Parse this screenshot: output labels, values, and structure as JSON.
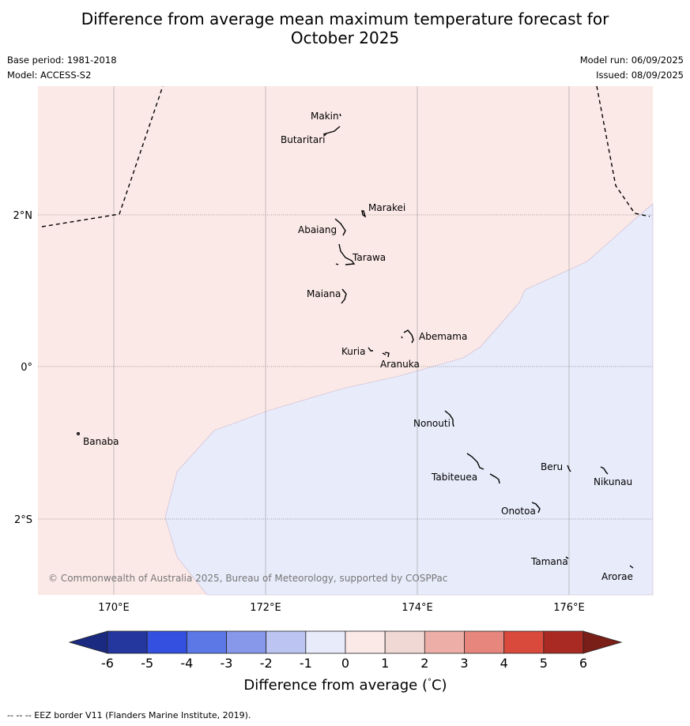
{
  "title_line1": "Difference from average mean maximum temperature forecast for",
  "title_line2": "October 2025",
  "base_period": "Base period: 1981-2018",
  "model": "Model: ACCESS-S2",
  "model_run": "Model run: 06/09/2025",
  "issued": "Issued: 08/09/2025",
  "copyright": "© Commonwealth of Australia 2025, Bureau of Meteorology, supported by COSPPac",
  "lat_labels": [
    "2°N",
    "0°",
    "2°S"
  ],
  "lon_labels": [
    "170°E",
    "172°E",
    "174°E",
    "176°E"
  ],
  "colorbar": {
    "label": "Difference from average (°C)",
    "label_prefix": "Difference from average (",
    "label_unit": "C)",
    "ticks": [
      "-6",
      "-5",
      "-4",
      "-3",
      "-2",
      "-1",
      "0",
      "1",
      "2",
      "3",
      "4",
      "5",
      "6"
    ],
    "colors": [
      "#24379f",
      "#3350e0",
      "#5c78e6",
      "#8798eb",
      "#bcc5f2",
      "#e8ebfa",
      "#fbe9e7",
      "#f0d8d4",
      "#ecaea7",
      "#e6867d",
      "#d9493c",
      "#a82a22"
    ],
    "under_color": "#1a2a80",
    "over_color": "#7a1e18"
  },
  "categories_on_map": {
    "warm_zone_color": "#fbe9e7",
    "cool_zone_color": "#e8ebfa"
  },
  "islands": [
    "Makin",
    "Butaritari",
    "Marakei",
    "Abaiang",
    "Tarawa",
    "Maiana",
    "Abemama",
    "Kuria",
    "Aranuka",
    "Banaba",
    "Nonouti",
    "Beru",
    "Nikunau",
    "Tabiteuea",
    "Onotoa",
    "Tamana",
    "Arorae"
  ],
  "footer": "--  --  -- EEZ border V11 (Flanders Marine Institute, 2019)."
}
